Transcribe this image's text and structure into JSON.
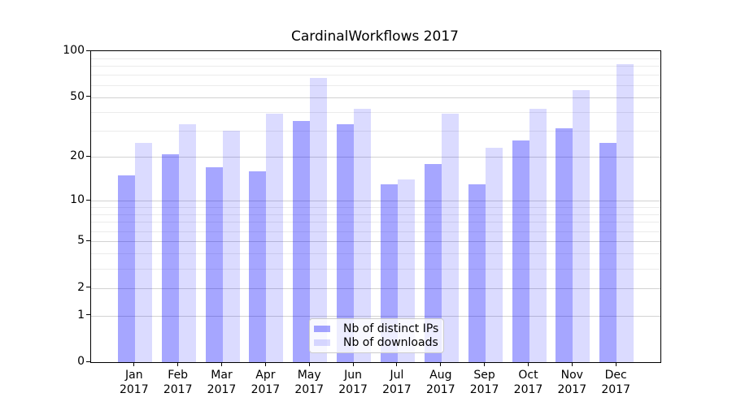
{
  "title": "CardinalWorkflows 2017",
  "chart_data": {
    "type": "bar",
    "title": "CardinalWorkflows 2017",
    "categories": [
      "Jan 2017",
      "Feb 2017",
      "Mar 2017",
      "Apr 2017",
      "May 2017",
      "Jun 2017",
      "Jul 2017",
      "Aug 2017",
      "Sep 2017",
      "Oct 2017",
      "Nov 2017",
      "Dec 2017"
    ],
    "x_tick_months": [
      "Jan",
      "Feb",
      "Mar",
      "Apr",
      "May",
      "Jun",
      "Jul",
      "Aug",
      "Sep",
      "Oct",
      "Nov",
      "Dec"
    ],
    "x_tick_year": "2017",
    "series": [
      {
        "name": "Nb of distinct IPs",
        "color": "rgba(0,0,255,0.35)",
        "values": [
          15,
          21,
          17,
          16,
          35,
          33,
          13,
          18,
          13,
          26,
          31,
          25
        ]
      },
      {
        "name": "Nb of downloads",
        "color": "rgba(0,0,255,0.14)",
        "values": [
          25,
          33,
          30,
          39,
          67,
          42,
          14,
          39,
          23,
          42,
          56,
          82
        ]
      }
    ],
    "xlabel": "",
    "ylabel": "",
    "y_scale": "log1p",
    "ylim": [
      0,
      100
    ],
    "y_ticks": [
      0,
      1,
      2,
      5,
      10,
      20,
      50,
      100
    ],
    "y_major_gridlines": [
      1,
      2,
      5,
      10,
      20,
      50
    ],
    "y_minor_gridlines": [
      3,
      4,
      6,
      7,
      8,
      9,
      30,
      40,
      60,
      70,
      80,
      90
    ],
    "grid": "on",
    "legend_position": "lower center"
  },
  "colors": {
    "background": "#ffffff",
    "spine": "#000000",
    "major_grid": "#d2d2d2",
    "minor_grid": "#ebebeb",
    "bar_dark": "rgba(0,0,255,0.35)",
    "bar_light": "rgba(0,0,255,0.14)",
    "legend_border": "#cccccc"
  }
}
